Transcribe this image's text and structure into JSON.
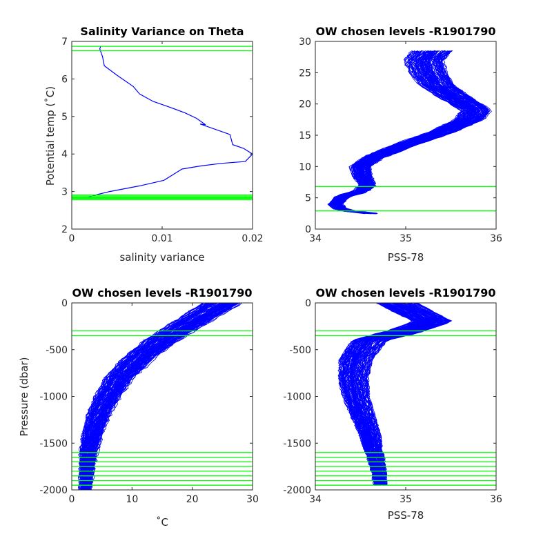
{
  "colors": {
    "profile": "#0000ff",
    "level": "#00ff00",
    "axis": "#262626"
  },
  "chart_data": [
    {
      "id": "p1",
      "type": "line",
      "title": "Salinity Variance on Theta",
      "xlabel": "salinity variance",
      "ylabel": "Potential temp (˚C)",
      "xlim": [
        0,
        0.02
      ],
      "ylim": [
        2,
        7
      ],
      "xticks": [
        0,
        0.01,
        0.02
      ],
      "xtick_labels": [
        "0",
        "0.01",
        "0.02"
      ],
      "yticks": [
        2,
        3,
        4,
        5,
        6,
        7
      ],
      "ytick_labels": [
        "2",
        "3",
        "4",
        "5",
        "6",
        "7"
      ],
      "series": [
        {
          "x": [
            0.0032,
            0.0031,
            0.0034,
            0.0036,
            0.005,
            0.0068,
            0.0075,
            0.009,
            0.0108,
            0.0125,
            0.0138,
            0.0148,
            0.0142,
            0.0175,
            0.0178,
            0.019,
            0.02,
            0.0192,
            0.0165,
            0.0142,
            0.0122,
            0.0102,
            0.0075,
            0.0042,
            0.0028,
            0.0018
          ],
          "y": [
            6.87,
            6.8,
            6.6,
            6.35,
            6.1,
            5.8,
            5.6,
            5.4,
            5.25,
            5.1,
            4.95,
            4.78,
            4.8,
            4.52,
            4.25,
            4.15,
            4.0,
            3.8,
            3.75,
            3.68,
            3.6,
            3.3,
            3.15,
            3.0,
            2.92,
            2.85
          ]
        }
      ],
      "levels": [
        6.75,
        6.87,
        2.78,
        2.81,
        2.83,
        2.85,
        2.88,
        2.91
      ]
    },
    {
      "id": "p2",
      "type": "line",
      "title": "OW chosen levels -R1901790",
      "xlabel": "PSS-78",
      "xlim": [
        34,
        36
      ],
      "ylim": [
        0,
        30
      ],
      "xticks": [
        34,
        35,
        36
      ],
      "xtick_labels": [
        "34",
        "35",
        "36"
      ],
      "yticks": [
        0,
        5,
        10,
        15,
        20,
        25,
        30
      ],
      "ytick_labels": [
        "0",
        "5",
        "10",
        "15",
        "20",
        "25",
        "30"
      ],
      "profile_mean": {
        "x": [
          34.62,
          34.3,
          34.22,
          34.3,
          34.5,
          34.58,
          34.52,
          34.5,
          34.65,
          35.0,
          35.4,
          35.7,
          35.78,
          35.55,
          35.35,
          35.25,
          35.2,
          35.3
        ],
        "y": [
          2.5,
          3.0,
          4.0,
          5.2,
          6.0,
          7.0,
          8.5,
          10.0,
          11.5,
          13.5,
          15.5,
          17.5,
          19.0,
          21.0,
          23.0,
          25.0,
          27.0,
          28.5
        ]
      },
      "profile_count": 120,
      "levels": [
        2.9,
        6.8
      ]
    },
    {
      "id": "p3",
      "type": "line",
      "title": "OW chosen levels -R1901790",
      "xlabel": "˚C",
      "ylabel": "Pressure (dbar)",
      "xlim": [
        0,
        30
      ],
      "ylim": [
        -2000,
        0
      ],
      "xticks": [
        0,
        10,
        20,
        30
      ],
      "xtick_labels": [
        "0",
        "10",
        "20",
        "30"
      ],
      "yticks": [
        -2000,
        -1500,
        -1000,
        -500,
        0
      ],
      "ytick_labels": [
        "-2000",
        "-1500",
        "-1000",
        "-500",
        "0"
      ],
      "profile_mean": {
        "x": [
          2.3,
          2.5,
          2.8,
          3.5,
          4.5,
          6.0,
          8.0,
          11.0,
          15.0,
          20.0,
          25.0
        ],
        "y": [
          -2000,
          -1800,
          -1600,
          -1400,
          -1200,
          -1000,
          -800,
          -600,
          -400,
          -200,
          0
        ]
      },
      "profile_count": 120,
      "levels": [
        -300,
        -350,
        -1600,
        -1650,
        -1700,
        -1750,
        -1800,
        -1850,
        -1900,
        -1950
      ]
    },
    {
      "id": "p4",
      "type": "line",
      "title": "OW chosen levels -R1901790",
      "xlabel": "PSS-78",
      "xlim": [
        34,
        36
      ],
      "ylim": [
        -2000,
        0
      ],
      "xticks": [
        34,
        35,
        36
      ],
      "xtick_labels": [
        "34",
        "35",
        "36"
      ],
      "yticks": [
        -2000,
        -1500,
        -1000,
        -500,
        0
      ],
      "ytick_labels": [
        "-2000",
        "-1500",
        "-1000",
        "-500",
        "0"
      ],
      "profile_mean": {
        "x": [
          34.72,
          34.7,
          34.65,
          34.6,
          34.52,
          34.45,
          34.42,
          34.45,
          34.6,
          35.0,
          35.3,
          35.1,
          34.9
        ],
        "y": [
          -1950,
          -1800,
          -1600,
          -1400,
          -1200,
          -1000,
          -800,
          -600,
          -400,
          -300,
          -200,
          -100,
          0
        ]
      },
      "profile_count": 120,
      "levels": [
        -300,
        -350,
        -1600,
        -1650,
        -1700,
        -1750,
        -1800,
        -1850,
        -1900,
        -1950
      ]
    }
  ]
}
